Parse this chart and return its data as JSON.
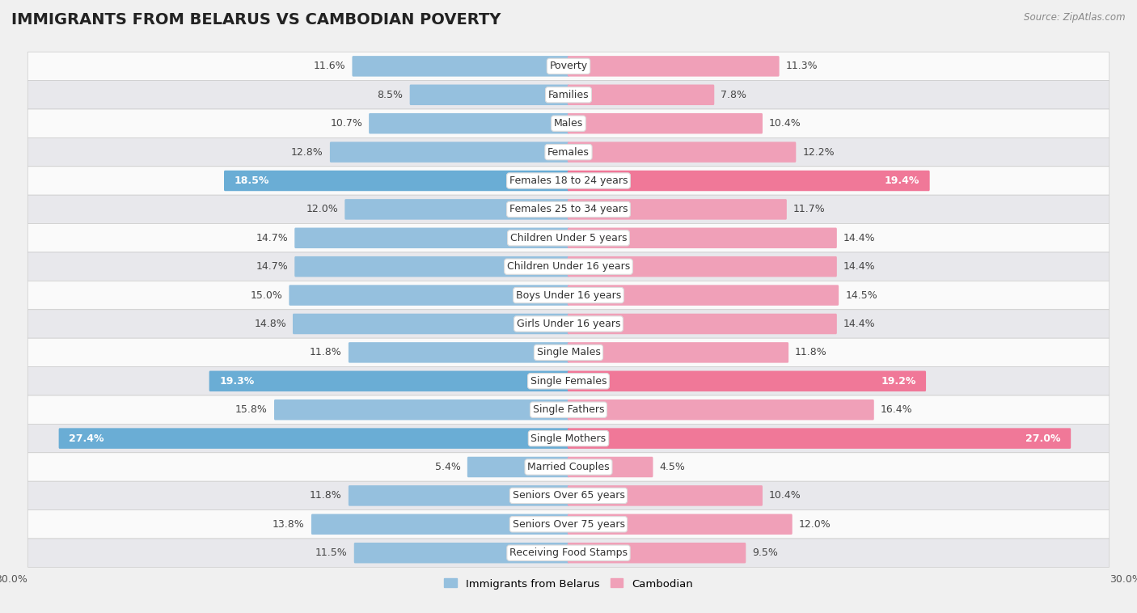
{
  "title": "IMMIGRANTS FROM BELARUS VS CAMBODIAN POVERTY",
  "source": "Source: ZipAtlas.com",
  "categories": [
    "Poverty",
    "Families",
    "Males",
    "Females",
    "Females 18 to 24 years",
    "Females 25 to 34 years",
    "Children Under 5 years",
    "Children Under 16 years",
    "Boys Under 16 years",
    "Girls Under 16 years",
    "Single Males",
    "Single Females",
    "Single Fathers",
    "Single Mothers",
    "Married Couples",
    "Seniors Over 65 years",
    "Seniors Over 75 years",
    "Receiving Food Stamps"
  ],
  "left_values": [
    11.6,
    8.5,
    10.7,
    12.8,
    18.5,
    12.0,
    14.7,
    14.7,
    15.0,
    14.8,
    11.8,
    19.3,
    15.8,
    27.4,
    5.4,
    11.8,
    13.8,
    11.5
  ],
  "right_values": [
    11.3,
    7.8,
    10.4,
    12.2,
    19.4,
    11.7,
    14.4,
    14.4,
    14.5,
    14.4,
    11.8,
    19.2,
    16.4,
    27.0,
    4.5,
    10.4,
    12.0,
    9.5
  ],
  "left_color_normal": "#95c0de",
  "right_color_normal": "#f0a0b8",
  "left_color_highlight": "#6aadd5",
  "right_color_highlight": "#f07898",
  "highlight_rows": [
    4,
    11,
    13
  ],
  "xlim": 30.0,
  "left_label": "Immigrants from Belarus",
  "right_label": "Cambodian",
  "bg_color": "#f0f0f0",
  "row_color_light": "#fafafa",
  "row_color_dark": "#e8e8ec",
  "title_fontsize": 14,
  "cat_fontsize": 9,
  "value_fontsize": 9
}
